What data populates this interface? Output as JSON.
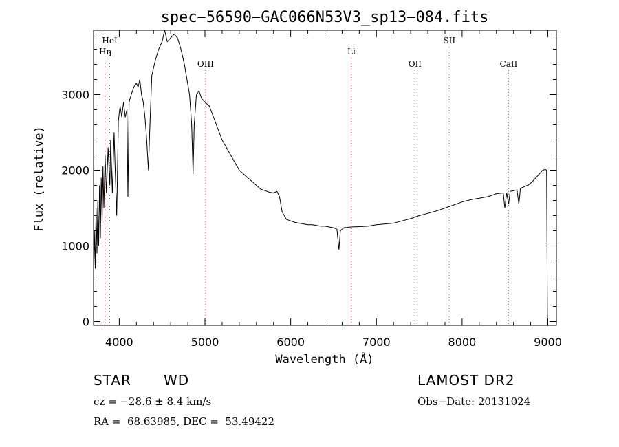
{
  "chart_data": {
    "type": "line",
    "title": "spec−56590−GAC066N53V3_sp13−084.fits",
    "xlabel": "Wavelength (Å)",
    "ylabel": "Flux (relative)",
    "xlim": [
      3700,
      9100
    ],
    "ylim": [
      -50,
      3850
    ],
    "xticks": [
      4000,
      5000,
      6000,
      7000,
      8000,
      9000
    ],
    "yticks": [
      0,
      1000,
      2000,
      3000
    ],
    "grid": false,
    "legend": "none",
    "line_color": "#000000",
    "marker_color": "#e03030",
    "spectral_lines": [
      {
        "label": "HeI",
        "wavelength": 3889,
        "label_level": "top"
      },
      {
        "label": "Hη",
        "wavelength": 3835,
        "label_level": "second"
      },
      {
        "label": "OIII",
        "wavelength": 5007,
        "label_level": "third"
      },
      {
        "label": "Li",
        "wavelength": 6708,
        "label_level": "second"
      },
      {
        "label": "OII",
        "wavelength": 7450,
        "label_level": "third"
      },
      {
        "label": "SII",
        "wavelength": 7850,
        "label_level": "top"
      },
      {
        "label": "CaII",
        "wavelength": 8542,
        "label_level": "third"
      }
    ],
    "series": [
      {
        "points": [
          [
            3700,
            500
          ],
          [
            3710,
            1200
          ],
          [
            3720,
            700
          ],
          [
            3730,
            1500
          ],
          [
            3740,
            900
          ],
          [
            3750,
            1600
          ],
          [
            3760,
            1000
          ],
          [
            3770,
            1800
          ],
          [
            3780,
            1100
          ],
          [
            3790,
            1900
          ],
          [
            3800,
            1300
          ],
          [
            3810,
            2050
          ],
          [
            3820,
            1500
          ],
          [
            3835,
            2200
          ],
          [
            3850,
            1700
          ],
          [
            3870,
            2300
          ],
          [
            3890,
            1800
          ],
          [
            3900,
            2400
          ],
          [
            3920,
            1700
          ],
          [
            3940,
            2500
          ],
          [
            3950,
            2100
          ],
          [
            3970,
            1400
          ],
          [
            3990,
            2650
          ],
          [
            4010,
            2850
          ],
          [
            4030,
            2700
          ],
          [
            4050,
            2900
          ],
          [
            4070,
            2700
          ],
          [
            4090,
            2800
          ],
          [
            4101,
            1650
          ],
          [
            4115,
            2900
          ],
          [
            4140,
            3000
          ],
          [
            4170,
            3100
          ],
          [
            4200,
            3150
          ],
          [
            4220,
            3100
          ],
          [
            4240,
            3200
          ],
          [
            4260,
            3000
          ],
          [
            4280,
            2900
          ],
          [
            4300,
            2700
          ],
          [
            4320,
            2400
          ],
          [
            4340,
            2000
          ],
          [
            4355,
            2500
          ],
          [
            4380,
            3250
          ],
          [
            4420,
            3450
          ],
          [
            4460,
            3600
          ],
          [
            4500,
            3700
          ],
          [
            4530,
            3850
          ],
          [
            4560,
            3700
          ],
          [
            4600,
            3750
          ],
          [
            4640,
            3800
          ],
          [
            4680,
            3750
          ],
          [
            4720,
            3600
          ],
          [
            4760,
            3400
          ],
          [
            4790,
            3200
          ],
          [
            4820,
            3000
          ],
          [
            4845,
            2600
          ],
          [
            4861,
            1950
          ],
          [
            4875,
            2600
          ],
          [
            4900,
            3000
          ],
          [
            4930,
            3050
          ],
          [
            4960,
            2950
          ],
          [
            5000,
            2900
          ],
          [
            5050,
            2850
          ],
          [
            5100,
            2700
          ],
          [
            5150,
            2550
          ],
          [
            5200,
            2400
          ],
          [
            5250,
            2300
          ],
          [
            5300,
            2200
          ],
          [
            5350,
            2100
          ],
          [
            5400,
            2000
          ],
          [
            5450,
            1950
          ],
          [
            5500,
            1900
          ],
          [
            5550,
            1850
          ],
          [
            5600,
            1800
          ],
          [
            5650,
            1750
          ],
          [
            5700,
            1730
          ],
          [
            5750,
            1710
          ],
          [
            5800,
            1700
          ],
          [
            5840,
            1720
          ],
          [
            5870,
            1650
          ],
          [
            5900,
            1450
          ],
          [
            5950,
            1350
          ],
          [
            6000,
            1330
          ],
          [
            6050,
            1310
          ],
          [
            6100,
            1300
          ],
          [
            6150,
            1290
          ],
          [
            6200,
            1280
          ],
          [
            6250,
            1280
          ],
          [
            6300,
            1270
          ],
          [
            6350,
            1260
          ],
          [
            6400,
            1260
          ],
          [
            6450,
            1250
          ],
          [
            6500,
            1240
          ],
          [
            6540,
            1220
          ],
          [
            6563,
            950
          ],
          [
            6580,
            1200
          ],
          [
            6620,
            1240
          ],
          [
            6700,
            1250
          ],
          [
            6800,
            1255
          ],
          [
            6900,
            1260
          ],
          [
            7000,
            1280
          ],
          [
            7100,
            1290
          ],
          [
            7200,
            1300
          ],
          [
            7300,
            1330
          ],
          [
            7400,
            1360
          ],
          [
            7500,
            1400
          ],
          [
            7600,
            1430
          ],
          [
            7700,
            1460
          ],
          [
            7800,
            1500
          ],
          [
            7900,
            1540
          ],
          [
            8000,
            1580
          ],
          [
            8100,
            1610
          ],
          [
            8200,
            1630
          ],
          [
            8300,
            1650
          ],
          [
            8400,
            1690
          ],
          [
            8480,
            1700
          ],
          [
            8498,
            1500
          ],
          [
            8520,
            1700
          ],
          [
            8542,
            1550
          ],
          [
            8560,
            1720
          ],
          [
            8600,
            1730
          ],
          [
            8640,
            1740
          ],
          [
            8662,
            1550
          ],
          [
            8680,
            1760
          ],
          [
            8720,
            1780
          ],
          [
            8780,
            1810
          ],
          [
            8820,
            1850
          ],
          [
            8860,
            1900
          ],
          [
            8900,
            1950
          ],
          [
            8940,
            2000
          ],
          [
            8970,
            2010
          ],
          [
            8985,
            2000
          ],
          [
            8990,
            1000
          ],
          [
            8995,
            50
          ]
        ]
      }
    ]
  },
  "info": {
    "object_type": "STAR",
    "subclass": "WD",
    "survey": "LAMOST DR2",
    "cz": "cz = −28.6 ± 8.4 km/s",
    "obs_date": "Obs−Date: 20131024",
    "coords": "RA =  68.63985, DEC =  53.49422"
  }
}
